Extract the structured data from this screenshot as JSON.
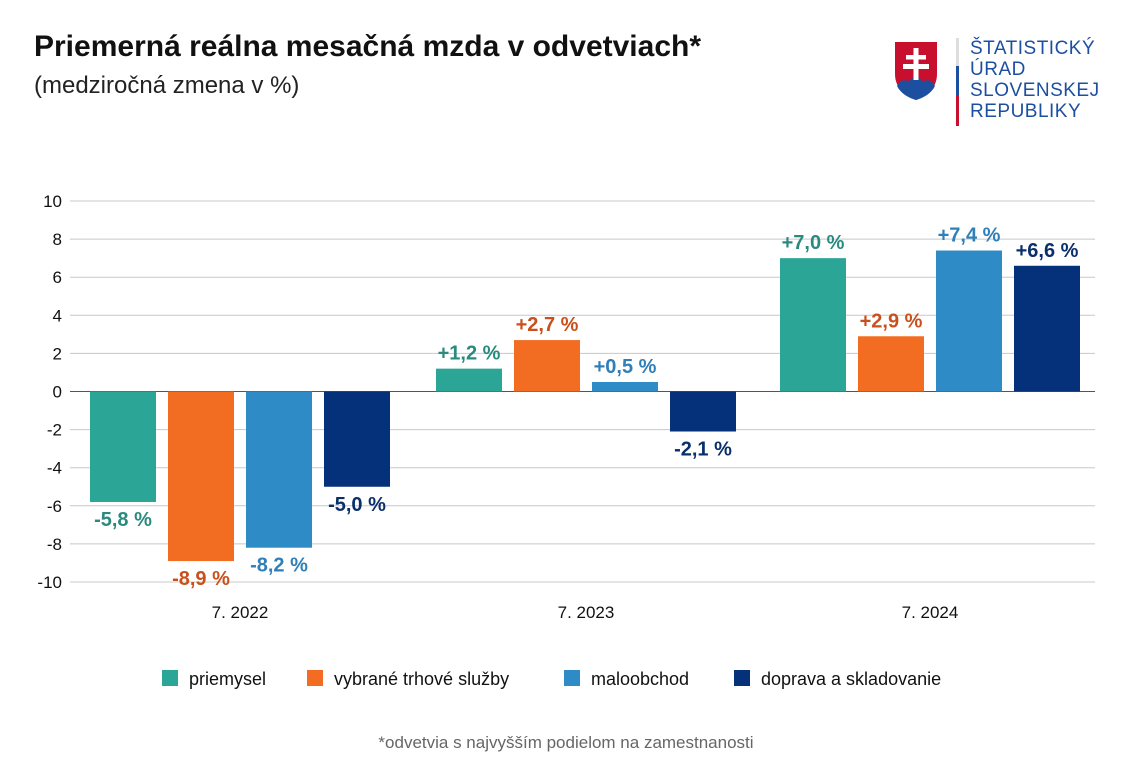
{
  "header": {
    "title": "Priemerná reálna mesačná mzda v odvetviach*",
    "subtitle": "(medziročná zmena v %)"
  },
  "logo": {
    "text": [
      "ŠTATISTICKÝ",
      "ÚRAD",
      "SLOVENSKEJ",
      "REPUBLIKY"
    ]
  },
  "footnote": "*odvetvia s najvyšším podielom na zamestnanosti",
  "chart_data": {
    "type": "bar",
    "title": "Priemerná reálna mesačná mzda v odvetviach*",
    "subtitle": "(medziročná zmena v %)",
    "categories": [
      "7. 2022",
      "7. 2023",
      "7. 2024"
    ],
    "ylim": [
      -10,
      10
    ],
    "yticks": [
      10,
      8,
      6,
      4,
      2,
      0,
      -2,
      -4,
      -6,
      -8,
      -10
    ],
    "grid": true,
    "legend_position": "bottom",
    "series": [
      {
        "name": "priemysel",
        "color": "#2aa596",
        "label_color": "#2a8a7e",
        "values": [
          -5.8,
          1.2,
          7.0
        ],
        "labels": [
          "-5,8 %",
          "+1,2 %",
          "+7,0 %"
        ]
      },
      {
        "name": "vybrané trhové služby",
        "color": "#f26c22",
        "label_color": "#c9501c",
        "values": [
          -8.9,
          2.7,
          2.9
        ],
        "labels": [
          "-8,9 %",
          "+2,7 %",
          "+2,9 %"
        ]
      },
      {
        "name": "maloobchod",
        "color": "#2e8bc6",
        "label_color": "#2f7fb8",
        "values": [
          -8.2,
          0.5,
          7.4
        ],
        "labels": [
          "-8,2 %",
          "+0,5 %",
          "+7,4 %"
        ]
      },
      {
        "name": "doprava a skladovanie",
        "color": "#04317a",
        "label_color": "#0a2f6b",
        "values": [
          -5.0,
          -2.1,
          6.6
        ],
        "labels": [
          "-5,0 %",
          "-2,1 %",
          "+6,6 %"
        ]
      }
    ]
  }
}
